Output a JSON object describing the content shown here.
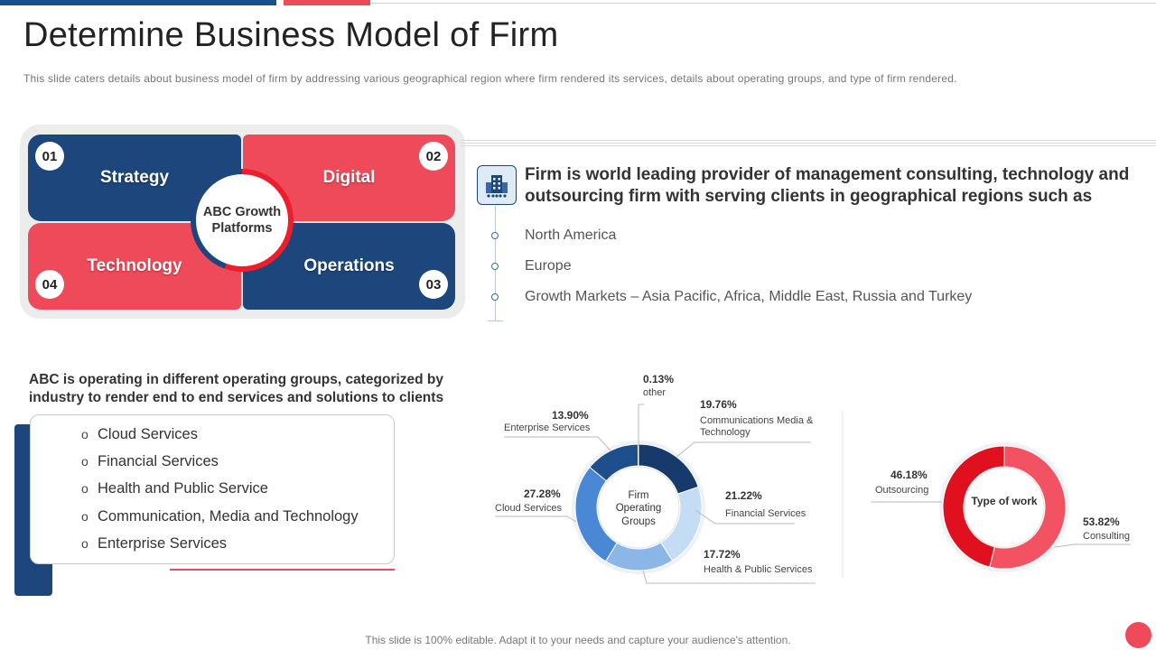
{
  "title": "Determine Business Model of Firm",
  "subtitle": "This slide caters details about business model of firm by addressing various geographical region where firm rendered its services, details about operating groups, and type of firm rendered.",
  "quad": {
    "hub": "ABC Growth Platforms",
    "items": [
      {
        "num": "01",
        "label": "Strategy"
      },
      {
        "num": "02",
        "label": "Digital"
      },
      {
        "num": "03",
        "label": "Operations"
      },
      {
        "num": "04",
        "label": "Technology"
      }
    ]
  },
  "firm": {
    "lead": "Firm is world leading provider of management consulting, technology and outsourcing firm with serving clients in geographical regions such as",
    "regions": [
      "North America",
      "Europe",
      "Growth Markets – Asia Pacific, Africa, Middle East, Russia and Turkey"
    ]
  },
  "operating": {
    "heading": "ABC is operating in different operating groups, categorized by industry to render end to end services and solutions to clients",
    "services": [
      "Cloud Services",
      "Financial Services",
      "Health and Public Service",
      "Communication, Media and Technology",
      "Enterprise Services"
    ],
    "bullet": "o"
  },
  "chart_data": [
    {
      "type": "pie",
      "center_label": "Firm Operating Groups",
      "categories": [
        "Communications Media & Technology",
        "Financial Services",
        "Health & Public Services",
        "Cloud Services",
        "Enterprise Services",
        "other"
      ],
      "values": [
        19.76,
        21.22,
        17.72,
        27.28,
        13.9,
        0.13
      ],
      "labels": [
        "19.76%",
        "21.22%",
        "17.72%",
        "27.28%",
        "13.90%",
        "0.13%"
      ],
      "colors": [
        "#163a6b",
        "#c5dcf5",
        "#8db6e8",
        "#4a88d6",
        "#1f4e8c",
        "#9fb8d8"
      ]
    },
    {
      "type": "pie",
      "center_label": "Type of work",
      "categories": [
        "Consulting",
        "Outsourcing"
      ],
      "values": [
        53.82,
        46.18
      ],
      "labels": [
        "53.82%",
        "46.18%"
      ],
      "colors": [
        "#f25262",
        "#e0101f"
      ]
    }
  ],
  "footer": "This slide is 100% editable. Adapt it to your needs and capture your audience's attention."
}
